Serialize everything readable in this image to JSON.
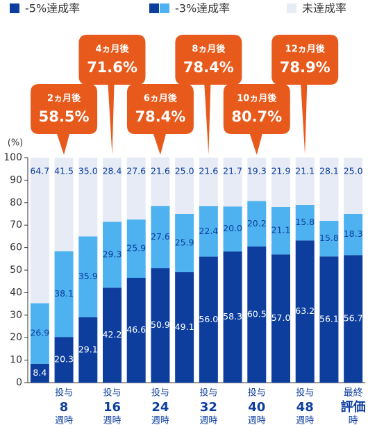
{
  "chart_data": {
    "type": "stacked-bar",
    "y_label": "(%)",
    "ylim": [
      0,
      100
    ],
    "yticks": [
      0,
      10,
      20,
      30,
      40,
      50,
      60,
      70,
      80,
      90,
      100
    ],
    "categories": [
      null,
      [
        "投与",
        "8",
        "週時"
      ],
      null,
      [
        "投与",
        "16",
        "週時"
      ],
      null,
      [
        "投与",
        "24",
        "週時"
      ],
      null,
      [
        "投与",
        "32",
        "週時"
      ],
      null,
      [
        "投与",
        "40",
        "週時"
      ],
      null,
      [
        "投与",
        "48",
        "週時"
      ],
      null,
      [
        "最終",
        "評価",
        "時"
      ]
    ],
    "series": [
      {
        "name": "-5%達成率",
        "color": "#0d3e9e",
        "values": [
          8.4,
          20.3,
          29.1,
          42.2,
          46.6,
          50.9,
          49.1,
          56.0,
          58.3,
          60.5,
          57.0,
          63.2,
          56.1,
          56.7
        ],
        "value_labels": [
          "8.4",
          "20.3",
          "29.1",
          "42.2",
          "46.6",
          "50.9",
          "49.1",
          "56.0",
          "58.3",
          "60.5",
          "57.0",
          "63.2",
          "56.1",
          "56.7"
        ]
      },
      {
        "name": "-3%達成率",
        "color": "#4db2ef",
        "values": [
          26.9,
          38.1,
          35.9,
          29.3,
          25.9,
          27.6,
          25.9,
          22.4,
          20.0,
          20.2,
          21.1,
          15.8,
          15.8,
          18.3
        ],
        "value_labels": [
          "26.9",
          "38.1",
          "35.9",
          "29.3",
          "25.9",
          "27.6",
          "25.9",
          "22.4",
          "20.0",
          "20.2",
          "21.1",
          "15.8",
          "15.8",
          "18.3"
        ]
      },
      {
        "name": "未達成率",
        "color": "#e6ebf5",
        "values": [
          64.7,
          41.5,
          35.0,
          28.4,
          27.6,
          21.6,
          25.0,
          21.6,
          21.7,
          19.3,
          21.9,
          21.1,
          28.1,
          25.0
        ],
        "value_labels": [
          "64.7",
          "41.5",
          "35.0",
          "28.4",
          "27.6",
          "21.6",
          "25.0",
          "21.6",
          "21.7",
          "19.3",
          "21.9",
          "21.1",
          "28.1",
          "25.0"
        ]
      }
    ],
    "annotation_color": "#e85a1c",
    "annotations": [
      null,
      {
        "label": "2ヵ月後",
        "value": 58.5,
        "value_label": "58.5%"
      },
      null,
      {
        "label": "4ヵ月後",
        "value": 71.6,
        "value_label": "71.6%"
      },
      null,
      {
        "label": "6ヵ月後",
        "value": 78.4,
        "value_label": "78.4%"
      },
      null,
      {
        "label": "8ヵ月後",
        "value": 78.4,
        "value_label": "78.4%"
      },
      null,
      {
        "label": "10ヵ月後",
        "value": 80.7,
        "value_label": "80.7%"
      },
      null,
      {
        "label": "12ヵ月後",
        "value": 78.9,
        "value_label": "78.9%"
      },
      null
    ]
  }
}
